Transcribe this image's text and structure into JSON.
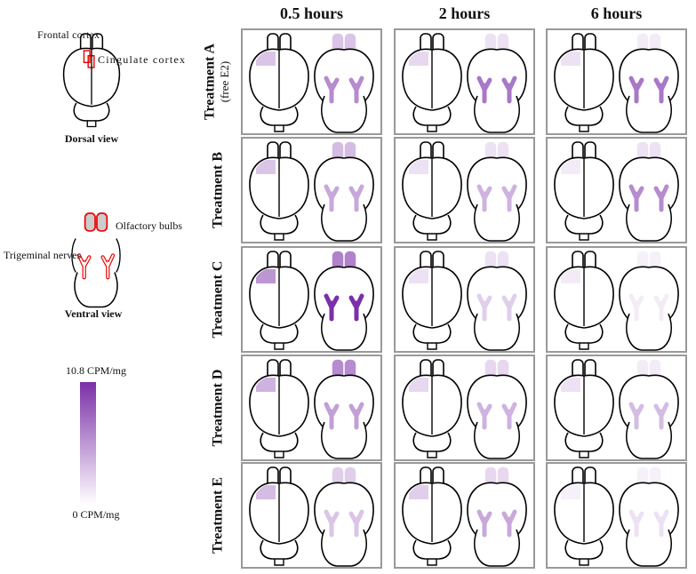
{
  "reference": {
    "dorsal": {
      "frontal_label": "Frontal cortex",
      "cingulate_label": "Cingulate cortex",
      "caption": "Dorsal view"
    },
    "ventral": {
      "olfactory_label": "Olfactory bulbs",
      "trigeminal_label": "Trigeminal nerves",
      "caption": "Ventral view"
    }
  },
  "legend": {
    "max": {
      "value": 10.8,
      "label": "10.8 CPM/mg"
    },
    "min": {
      "value": 0,
      "label": "0 CPM/mg"
    }
  },
  "columns": [
    "0.5 hours",
    "2 hours",
    "6 hours"
  ],
  "rows": [
    {
      "label": "Treatment A",
      "sublabel": "(free E2)",
      "cells": [
        {
          "frontal": 3,
          "olfactory": 3,
          "trigeminal": 6
        },
        {
          "frontal": 2,
          "olfactory": 1.5,
          "trigeminal": 7
        },
        {
          "frontal": 1.5,
          "olfactory": 1,
          "trigeminal": 7
        }
      ]
    },
    {
      "label": "Treatment B",
      "cells": [
        {
          "frontal": 3,
          "olfactory": 3.5,
          "trigeminal": 4.5
        },
        {
          "frontal": 1.5,
          "olfactory": 1.5,
          "trigeminal": 4
        },
        {
          "frontal": 1,
          "olfactory": 1.5,
          "trigeminal": 6
        }
      ]
    },
    {
      "label": "Treatment C",
      "cells": [
        {
          "frontal": 5.5,
          "olfactory": 6.5,
          "trigeminal": 10.8
        },
        {
          "frontal": 1.5,
          "olfactory": 1.5,
          "trigeminal": 2.5
        },
        {
          "frontal": 1,
          "olfactory": 0.8,
          "trigeminal": 1
        }
      ]
    },
    {
      "label": "Treatment D",
      "cells": [
        {
          "frontal": 4,
          "olfactory": 6,
          "trigeminal": 5
        },
        {
          "frontal": 2,
          "olfactory": 2,
          "trigeminal": 4
        },
        {
          "frontal": 1.5,
          "olfactory": 1,
          "trigeminal": 3.5
        }
      ]
    },
    {
      "label": "Treatment E",
      "cells": [
        {
          "frontal": 3.5,
          "olfactory": 2.5,
          "trigeminal": 3
        },
        {
          "frontal": 2.5,
          "olfactory": 2,
          "trigeminal": 4.5
        },
        {
          "frontal": 0.8,
          "olfactory": 0.8,
          "trigeminal": 1.5
        }
      ]
    }
  ]
}
